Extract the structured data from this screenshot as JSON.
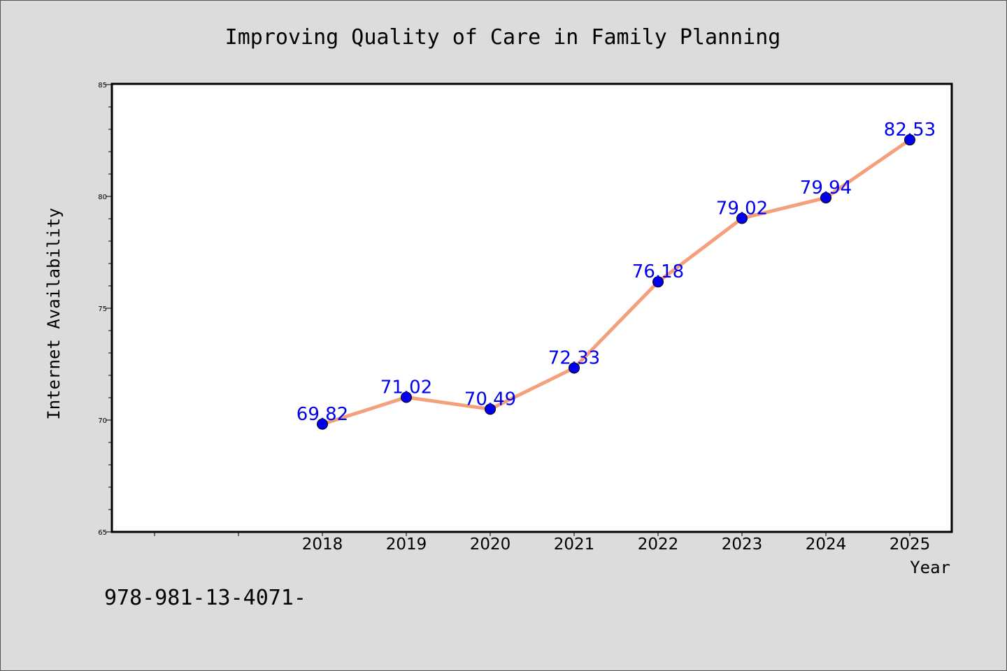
{
  "chart_data": {
    "type": "line",
    "title": "Improving Quality of Care in Family Planning",
    "xlabel": "Year",
    "ylabel": "Internet Availability",
    "categories": [
      "2018",
      "2019",
      "2020",
      "2021",
      "2022",
      "2023",
      "2024",
      "2025"
    ],
    "series": [
      {
        "values": [
          69.82,
          71.02,
          70.49,
          72.33,
          76.18,
          79.02,
          79.94,
          82.53
        ],
        "labels": [
          "69.82",
          "71.02",
          "70.49",
          "72.33",
          "76.18",
          "79.02",
          "79.94",
          "82.53"
        ],
        "line_color": "#f4a07c",
        "marker_color": "#0000ee"
      }
    ],
    "ylim": [
      65,
      85
    ],
    "y_ticks": [
      "65",
      "70",
      "75",
      "80",
      "85"
    ],
    "grid": false,
    "legend": "none"
  },
  "footer_text": "978-981-13-4071-",
  "colors": {
    "background": "#dcdcdc",
    "plot_background": "#ffffff",
    "label_color": "#0000ee"
  }
}
